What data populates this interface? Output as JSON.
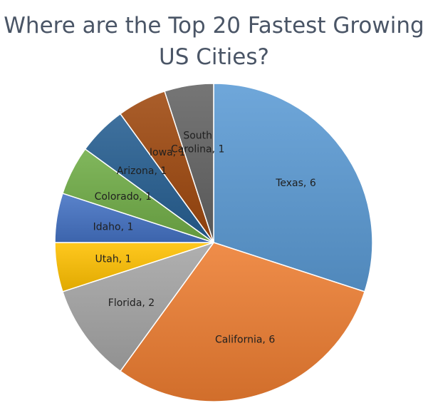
{
  "chart_data": {
    "type": "pie",
    "title": "Where are the Top 20 Fastest Growing US Cities?",
    "legend": "none",
    "slices": [
      {
        "category": "Texas",
        "value": 6,
        "label": "Texas, 6",
        "color": "#5b9bd5",
        "label_color": "#1f1f1f"
      },
      {
        "category": "California",
        "value": 6,
        "label": "California, 6",
        "color": "#ed7d31",
        "label_color": "#1f1f1f"
      },
      {
        "category": "Florida",
        "value": 2,
        "label": "Florida, 2",
        "color": "#a5a5a5",
        "label_color": "#1f1f1f"
      },
      {
        "category": "Utah",
        "value": 1,
        "label": "Utah, 1",
        "color": "#ffc000",
        "label_color": "#1f1f1f"
      },
      {
        "category": "Idaho",
        "value": 1,
        "label": "Idaho, 1",
        "color": "#4472c4",
        "label_color": "#1f1f1f"
      },
      {
        "category": "Colorado",
        "value": 1,
        "label": "Colorado, 1",
        "color": "#70ad47",
        "label_color": "#1f1f1f"
      },
      {
        "category": "Arizona",
        "value": 1,
        "label": "Arizona, 1",
        "color": "#255e91",
        "label_color": "#1f1f1f"
      },
      {
        "category": "Iowa",
        "value": 1,
        "label": "Iowa, 1",
        "color": "#9e480e",
        "label_color": "#1f1f1f"
      },
      {
        "category": "South Carolina",
        "value": 1,
        "label": "South Carolina, 1",
        "label_lines": [
          "South",
          "Carolina, 1"
        ],
        "color": "#636363",
        "label_color": "#1f1f1f"
      }
    ]
  }
}
